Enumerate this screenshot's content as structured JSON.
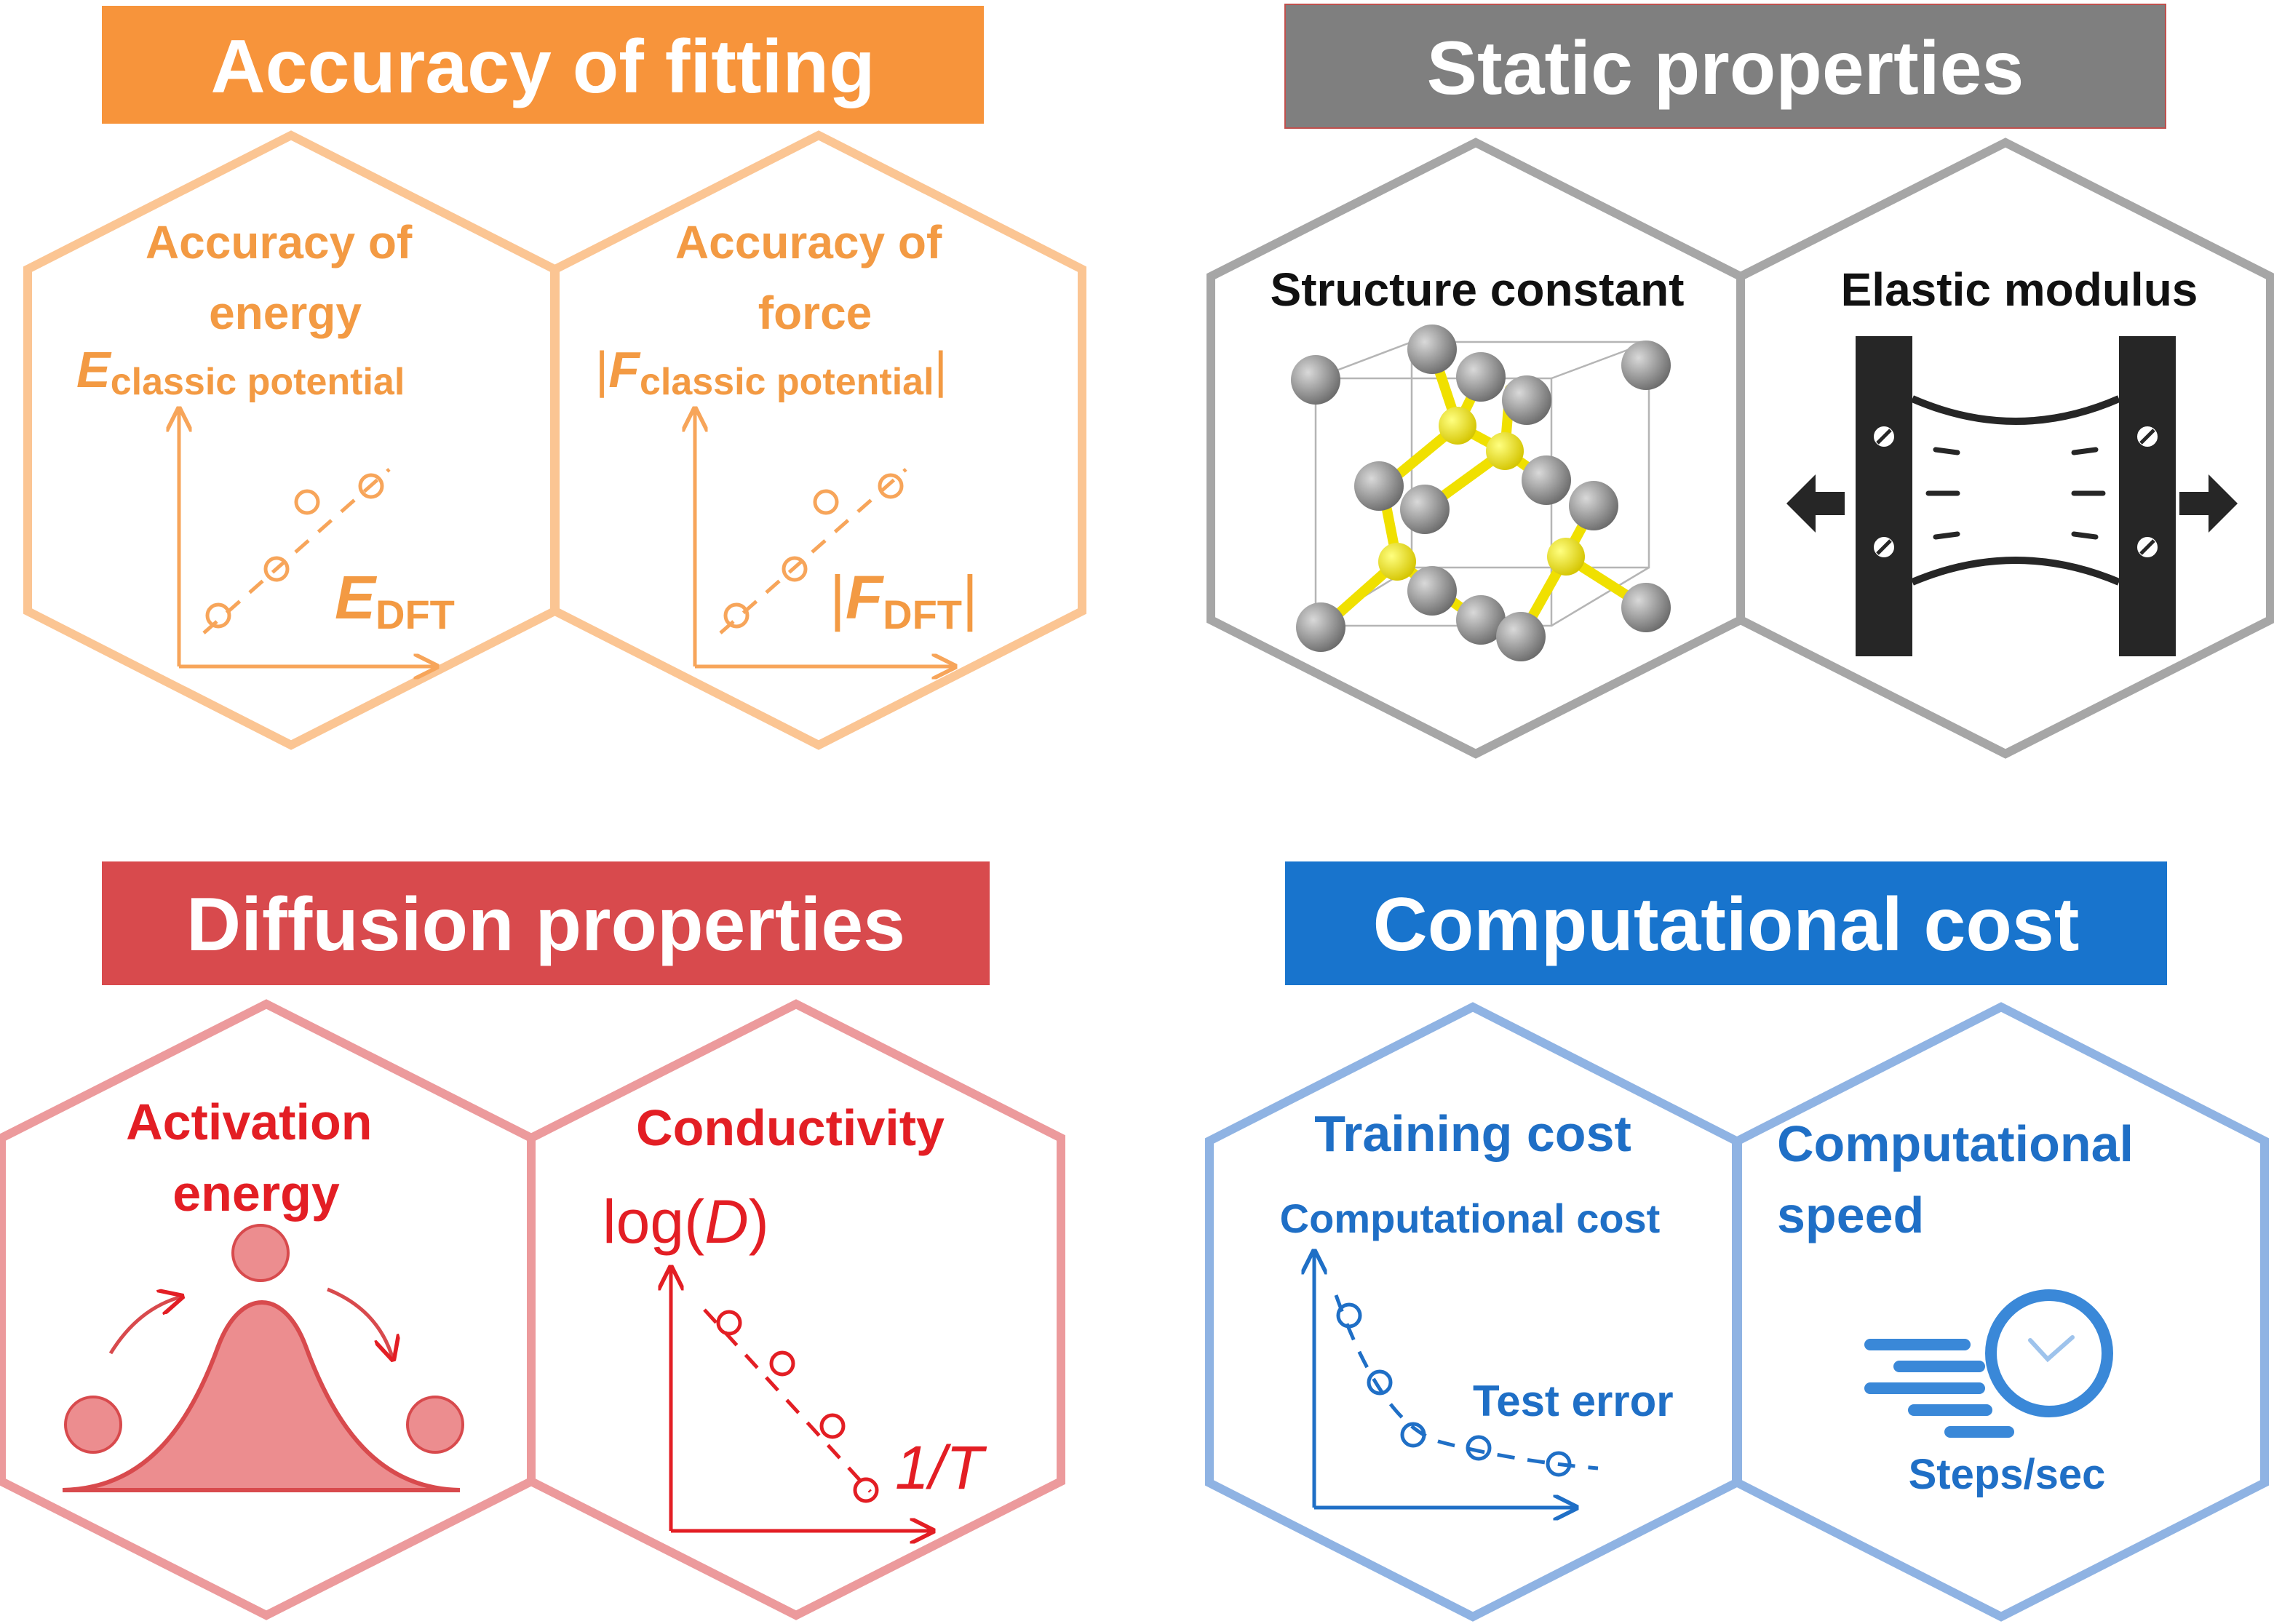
{
  "colors": {
    "orange": "#f7943b",
    "orange_light": "#fbc593",
    "orange_text": "#f39a43",
    "gray": "#7f7f7f",
    "gray_light": "#a6a6a6",
    "red": "#d84a4d",
    "red_light": "#ec9a9c",
    "red_text": "#e31e24",
    "blue": "#1874cd",
    "blue_light": "#8fb3e3",
    "blue_text": "#1f6fc6"
  },
  "panels": {
    "fitting": {
      "title": "Accuracy of fitting",
      "energy": {
        "heading_line1": "Accuracy of",
        "heading_line2": "energy",
        "y_symbol": "E",
        "y_sub": "classic potential",
        "x_symbol": "E",
        "x_sub": "DFT"
      },
      "force": {
        "heading_line1": "Accuracy of",
        "heading_line2": "force",
        "y_bar_left": "|",
        "y_symbol": "F",
        "y_sub": "classic potential",
        "y_bar_right": "|",
        "x_bar_left": "|",
        "x_symbol": "F",
        "x_sub": "DFT",
        "x_bar_right": "|"
      }
    },
    "static": {
      "title": "Static properties",
      "structure": {
        "heading": "Structure constant",
        "icon": "crystal-structure-icon"
      },
      "elastic": {
        "heading": "Elastic modulus",
        "icon": "tensile-test-icon"
      }
    },
    "diffusion": {
      "title": "Diffusion properties",
      "activation": {
        "heading_line1": "Activation",
        "heading_line2": "energy",
        "icon": "energy-barrier-icon"
      },
      "conductivity": {
        "heading": "Conductivity",
        "y_prefix": "log(",
        "y_symbol": "D",
        "y_suffix": ")",
        "x_label": "1/T"
      }
    },
    "cost": {
      "title": "Computational cost",
      "training": {
        "heading": "Training cost",
        "y_label": "Computational cost",
        "x_label": "Test error"
      },
      "speed": {
        "heading_line1": "Computational",
        "heading_line2": "speed",
        "unit_label": "Steps/sec",
        "icon": "stopwatch-speed-icon"
      }
    }
  }
}
